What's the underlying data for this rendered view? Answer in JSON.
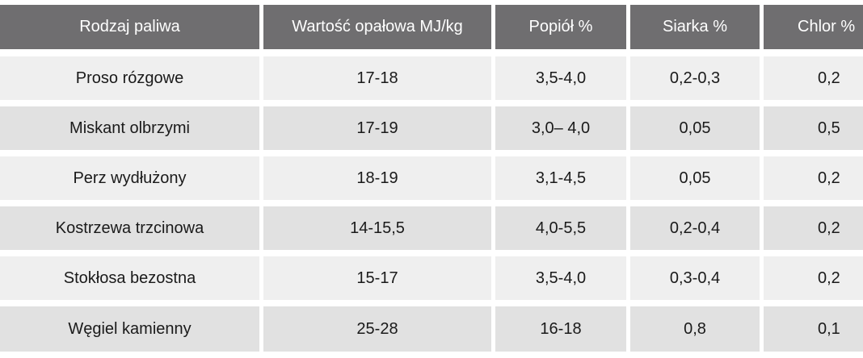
{
  "table": {
    "headers": [
      "Rodzaj paliwa",
      "Wartość opałowa MJ/kg",
      "Popiół %",
      "Siarka %",
      "Chlor %"
    ],
    "rows": [
      [
        "Proso rózgowe",
        "17-18",
        "3,5-4,0",
        "0,2-0,3",
        "0,2"
      ],
      [
        "Miskant olbrzymi",
        "17-19",
        "3,0– 4,0",
        "0,05",
        "0,5"
      ],
      [
        "Perz wydłużony",
        "18-19",
        "3,1-4,5",
        "0,05",
        "0,2"
      ],
      [
        "Kostrzewa trzcinowa",
        "14-15,5",
        "4,0-5,5",
        "0,2-0,4",
        "0,2"
      ],
      [
        "Stokłosa bezostna",
        "15-17",
        "3,5-4,0",
        "0,3-0,4",
        "0,2"
      ],
      [
        "Węgiel kamienny",
        "25-28",
        "16-18",
        "0,8",
        "0,1"
      ]
    ]
  },
  "colors": {
    "header_bg": "#6f6e70",
    "header_text": "#ffffff",
    "row_light": "#efefef",
    "row_dark": "#e1e1e1",
    "text": "#1a1a1a"
  }
}
